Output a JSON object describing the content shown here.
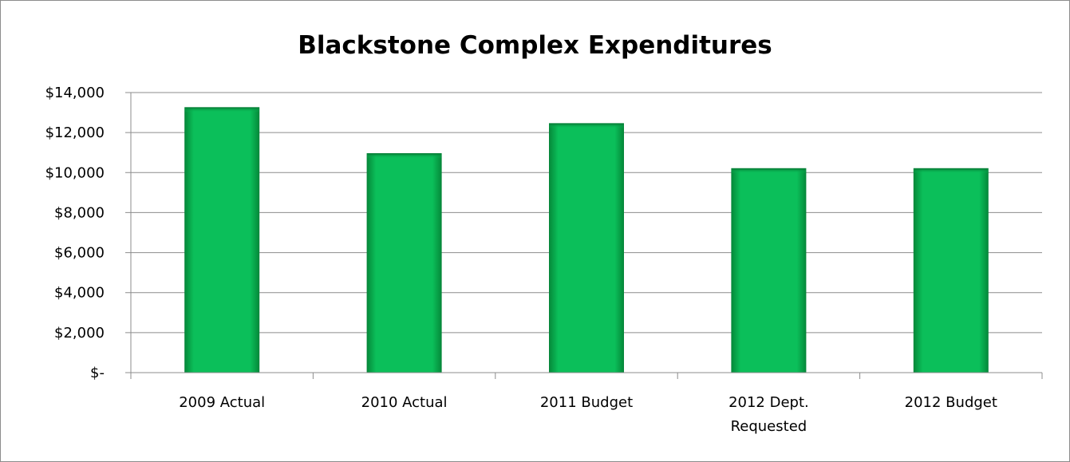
{
  "chart_data": {
    "type": "bar",
    "title": "Blackstone Complex Expenditures",
    "xlabel": "",
    "ylabel": "",
    "categories": [
      "2009 Actual",
      "2010 Actual",
      "2011 Budget",
      "2012 Dept. Requested",
      "2012 Budget"
    ],
    "values": [
      13250,
      10950,
      12450,
      10200,
      10200
    ],
    "ylim": [
      0,
      14000
    ],
    "yticks": [
      0,
      2000,
      4000,
      6000,
      8000,
      10000,
      12000,
      14000
    ],
    "ytick_labels": [
      "$-",
      "$2,000",
      "$4,000",
      "$6,000",
      "$8,000",
      "$10,000",
      "$12,000",
      "$14,000"
    ],
    "grid": true,
    "legend": "none",
    "bar_color": "#0bbf5a"
  }
}
